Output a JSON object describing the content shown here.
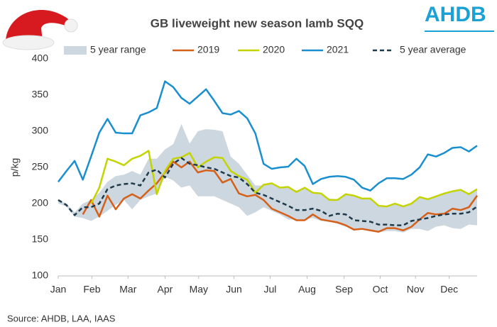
{
  "chart_data": {
    "type": "line",
    "title": "GB liveweight new season lamb SQQ",
    "logo": "AHDB",
    "source": "Source: AHDB, LAA, IAAS",
    "y_label": "p/kg",
    "x": [
      0,
      1,
      2,
      3,
      4,
      5,
      6,
      7,
      8,
      9,
      10,
      11,
      12,
      13,
      14,
      15,
      16,
      17,
      18,
      19,
      20,
      21,
      22,
      23,
      24,
      25,
      26,
      27,
      28,
      29,
      30,
      31,
      32,
      33,
      34,
      35,
      36,
      37,
      38,
      39,
      40,
      41,
      42,
      43,
      44,
      45,
      46,
      47,
      48,
      49,
      50,
      51
    ],
    "xlim": [
      0,
      51
    ],
    "xticks": [
      {
        "value": 0,
        "label": "Jan"
      },
      {
        "value": 4.1,
        "label": "Feb"
      },
      {
        "value": 8.5,
        "label": "Mar"
      },
      {
        "value": 13,
        "label": "Apr"
      },
      {
        "value": 17.1,
        "label": "May"
      },
      {
        "value": 21.4,
        "label": "Jun"
      },
      {
        "value": 25.8,
        "label": "Jul"
      },
      {
        "value": 30.3,
        "label": "Aug"
      },
      {
        "value": 34.8,
        "label": "Sep"
      },
      {
        "value": 39.2,
        "label": "Oct"
      },
      {
        "value": 43.5,
        "label": "Nov"
      },
      {
        "value": 47.6,
        "label": "Dec"
      }
    ],
    "ylim": [
      100,
      400
    ],
    "yticks": [
      100,
      150,
      200,
      250,
      300,
      350,
      400
    ],
    "series": [
      {
        "name": "5 year range",
        "color": "#cdd7df",
        "low": [
          200,
          196,
          182,
          180,
          176,
          182,
          190,
          198,
          205,
          192,
          205,
          210,
          214,
          237,
          232,
          222,
          225,
          210,
          210,
          210,
          205,
          200,
          195,
          183,
          188,
          195,
          190,
          185,
          178,
          178,
          178,
          180,
          176,
          175,
          172,
          168,
          165,
          165,
          163,
          160,
          162,
          162,
          160,
          165,
          165,
          162,
          168,
          170,
          166,
          165,
          171,
          170
        ],
        "high": [
          205,
          200,
          188,
          200,
          205,
          215,
          230,
          238,
          240,
          245,
          240,
          262,
          262,
          275,
          282,
          310,
          283,
          300,
          303,
          302,
          300,
          265,
          255,
          240,
          225,
          225,
          228,
          222,
          223,
          218,
          222,
          215,
          214,
          207,
          206,
          213,
          211,
          207,
          208,
          198,
          197,
          200,
          196,
          200,
          209,
          206,
          210,
          214,
          217,
          219,
          213,
          220
        ]
      },
      {
        "name": "2019",
        "color": "#d5601a",
        "values": [
          null,
          null,
          null,
          185,
          205,
          182,
          211,
          192,
          207,
          213,
          207,
          218,
          228,
          243,
          258,
          250,
          258,
          243,
          246,
          245,
          229,
          234,
          214,
          210,
          212,
          205,
          193,
          188,
          183,
          177,
          177,
          185,
          178,
          176,
          174,
          170,
          164,
          165,
          163,
          161,
          166,
          166,
          163,
          168,
          178,
          187,
          185,
          186,
          193,
          191,
          195,
          211
        ]
      },
      {
        "name": "2020",
        "color": "#c3d400",
        "values": [
          null,
          null,
          null,
          null,
          200,
          222,
          262,
          258,
          253,
          262,
          266,
          273,
          213,
          245,
          262,
          264,
          270,
          250,
          258,
          264,
          263,
          245,
          238,
          233,
          215,
          226,
          228,
          222,
          223,
          216,
          222,
          215,
          214,
          205,
          205,
          213,
          211,
          207,
          207,
          197,
          196,
          200,
          196,
          200,
          209,
          206,
          210,
          214,
          217,
          219,
          213,
          220
        ]
      },
      {
        "name": "2021",
        "color": "#1a8fd0",
        "values": [
          230,
          245,
          259,
          233,
          265,
          298,
          317,
          298,
          297,
          297,
          322,
          326,
          332,
          369,
          361,
          346,
          338,
          348,
          358,
          342,
          325,
          323,
          328,
          318,
          297,
          255,
          248,
          250,
          251,
          262,
          252,
          227,
          234,
          237,
          238,
          237,
          233,
          222,
          218,
          228,
          235,
          235,
          234,
          240,
          250,
          268,
          265,
          270,
          277,
          278,
          272,
          280
        ]
      },
      {
        "name": "5 year average",
        "color": "#1f3a4a",
        "dash": true,
        "values": [
          205,
          198,
          184,
          195,
          195,
          200,
          220,
          225,
          227,
          228,
          225,
          243,
          247,
          236,
          255,
          263,
          255,
          253,
          250,
          248,
          243,
          238,
          236,
          227,
          215,
          212,
          207,
          202,
          197,
          191,
          191,
          193,
          190,
          183,
          186,
          185,
          177,
          176,
          175,
          171,
          171,
          170,
          170,
          176,
          178,
          180,
          183,
          185,
          186,
          186,
          188,
          196
        ]
      }
    ]
  }
}
